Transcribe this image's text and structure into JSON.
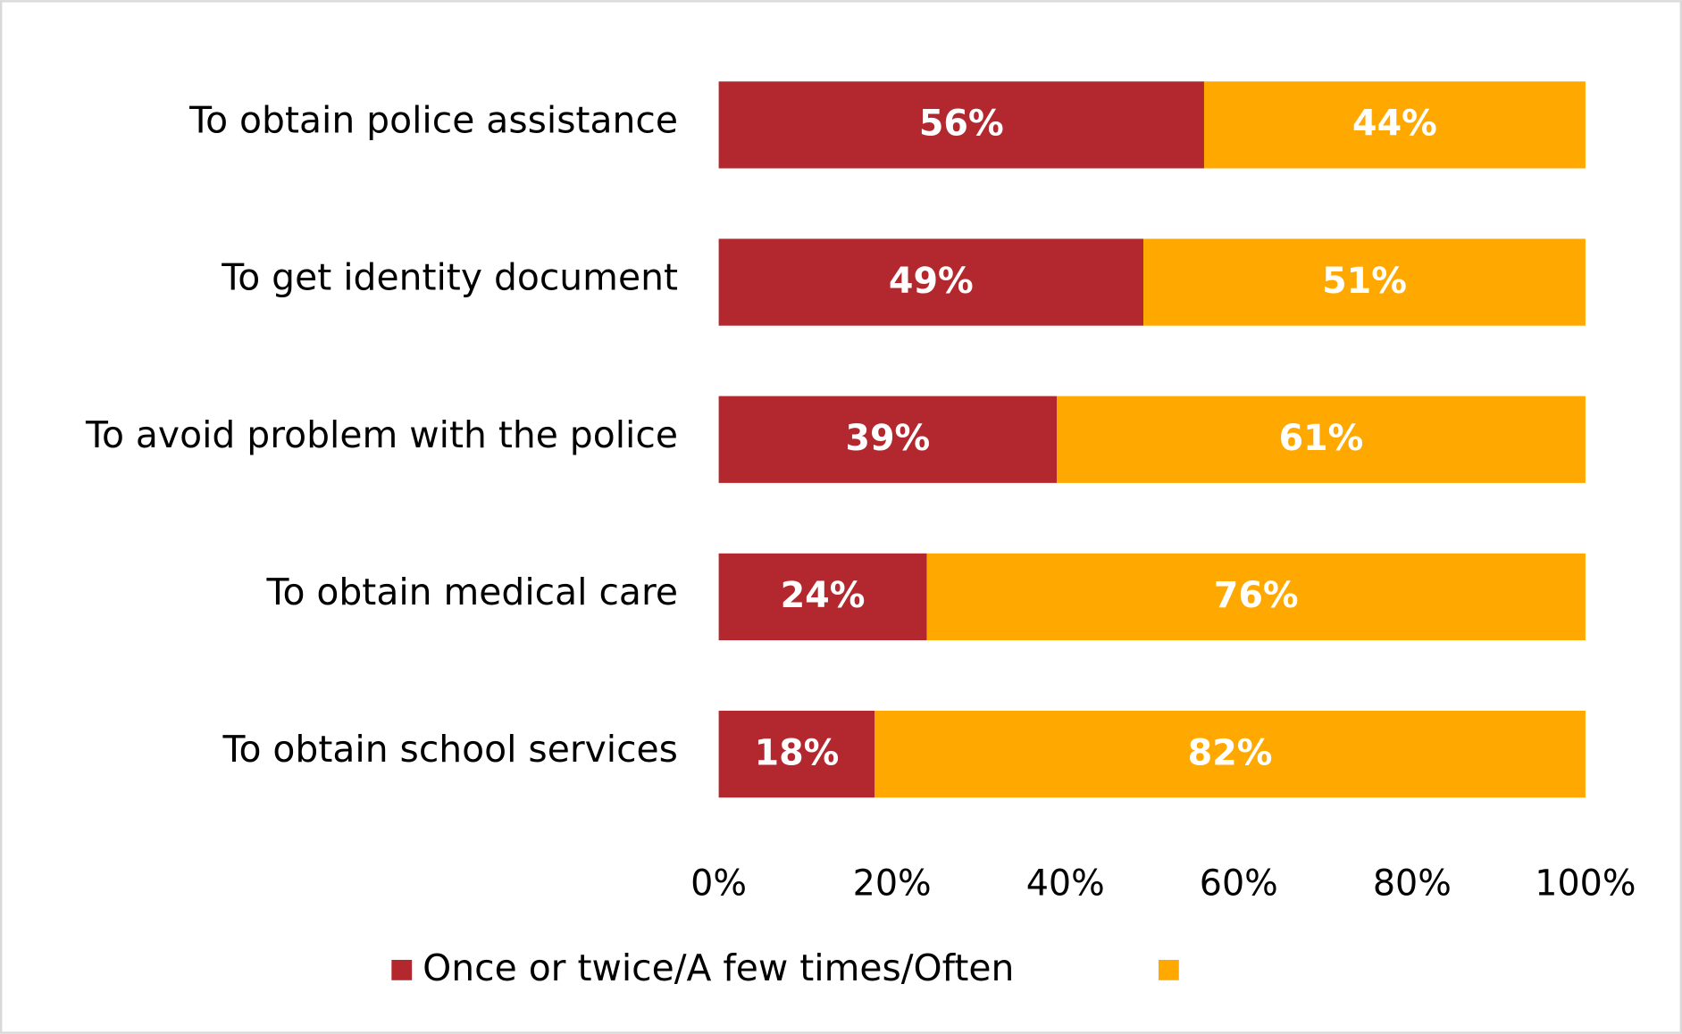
{
  "chart_data": {
    "type": "stacked-bar-horizontal",
    "categories": [
      "To obtain police assistance",
      "To get identity document",
      "To avoid problem with the police",
      "To obtain medical care",
      "To obtain school services"
    ],
    "series": [
      {
        "name": "Once or twice/A few times/Often",
        "color": "#b3282e",
        "values": [
          56,
          49,
          39,
          24,
          18
        ],
        "value_labels": [
          "56%",
          "49%",
          "39%",
          "24%",
          "18%"
        ]
      },
      {
        "color": "#ffa800",
        "values": [
          44,
          51,
          61,
          76,
          82
        ],
        "value_labels": [
          "44%",
          "51%",
          "61%",
          "76%",
          "82%"
        ]
      }
    ],
    "xlim": [
      0,
      100
    ],
    "xticks": [
      {
        "value": 0,
        "label": "0%"
      },
      {
        "value": 20,
        "label": "20%"
      },
      {
        "value": 40,
        "label": "40%"
      },
      {
        "value": 60,
        "label": "60%"
      },
      {
        "value": 80,
        "label": "80%"
      },
      {
        "value": 100,
        "label": "100%"
      }
    ],
    "legend": "bottom"
  }
}
